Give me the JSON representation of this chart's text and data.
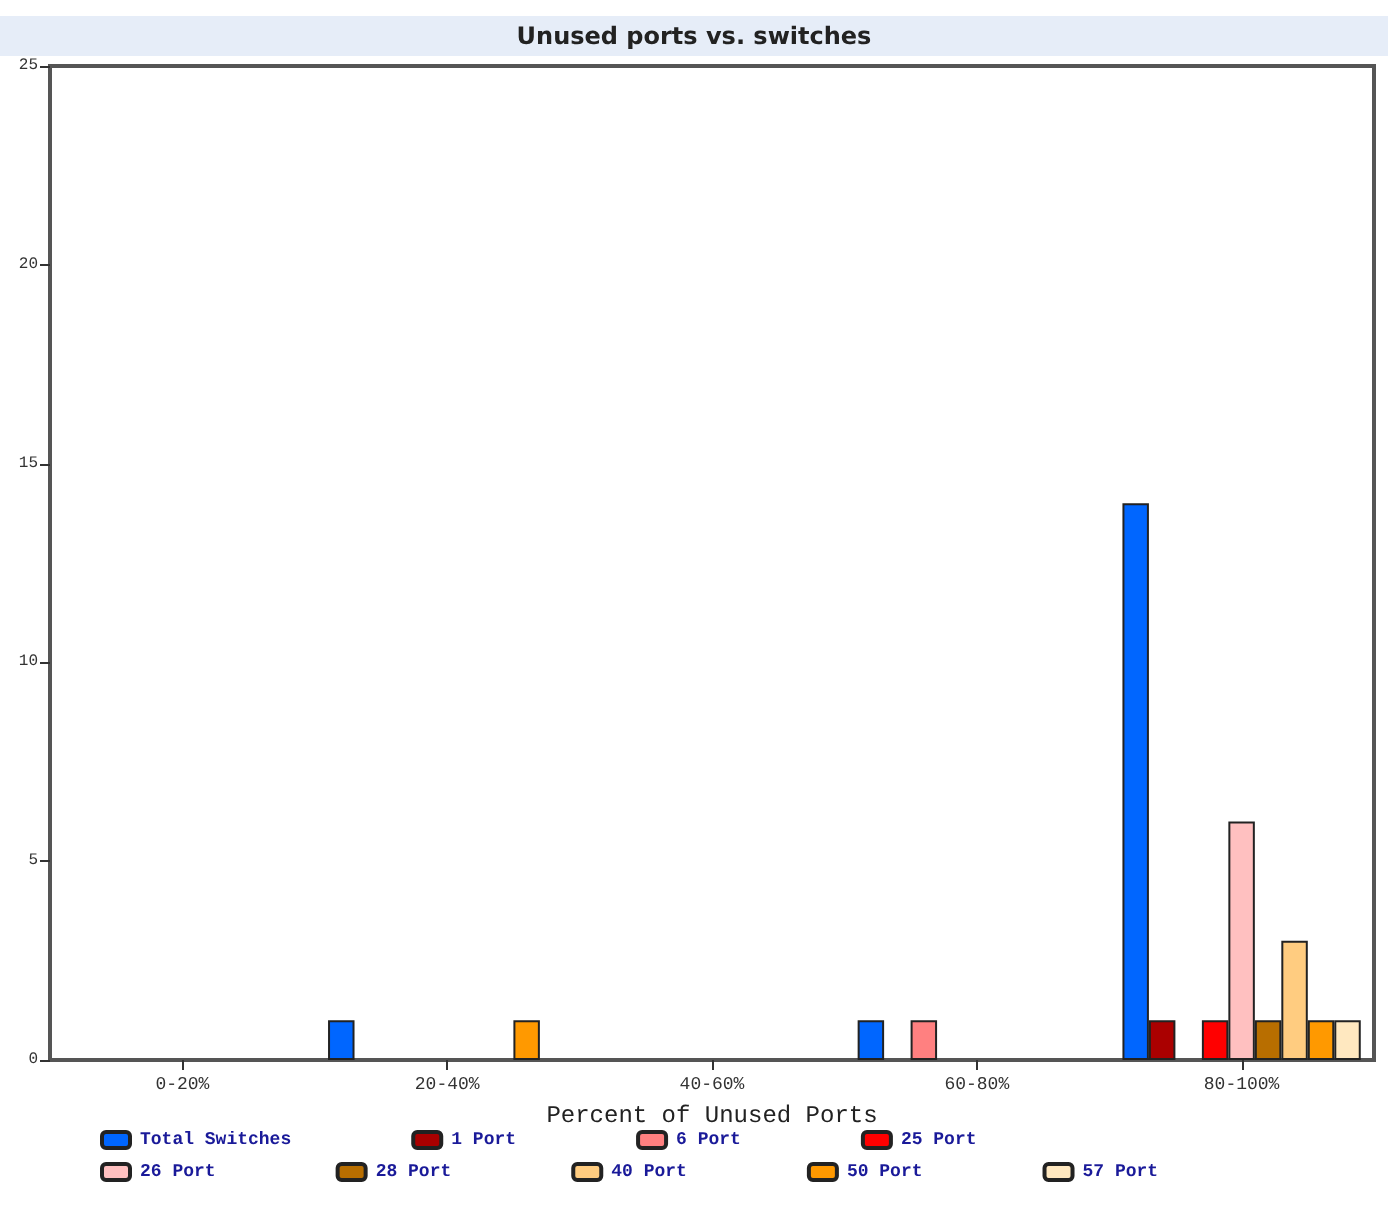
{
  "chart_data": {
    "type": "bar",
    "title": "Unused ports vs. switches",
    "xlabel": "Percent of Unused Ports",
    "categories": [
      "0-20%",
      "20-40%",
      "40-60%",
      "60-80%",
      "80-100%"
    ],
    "series": [
      {
        "name": "Total Switches",
        "color": "#0066ff",
        "values": [
          0,
          1,
          0,
          1,
          14
        ]
      },
      {
        "name": "1 Port",
        "color": "#aa0000",
        "values": [
          0,
          0,
          0,
          0,
          1
        ]
      },
      {
        "name": "6 Port",
        "color": "#ff8080",
        "values": [
          0,
          0,
          0,
          1,
          0
        ]
      },
      {
        "name": "25 Port",
        "color": "#ff0000",
        "values": [
          0,
          0,
          0,
          0,
          1
        ]
      },
      {
        "name": "26 Port",
        "color": "#ffc0c0",
        "values": [
          0,
          0,
          0,
          0,
          6
        ]
      },
      {
        "name": "28 Port",
        "color": "#b86e00",
        "values": [
          0,
          0,
          0,
          0,
          1
        ]
      },
      {
        "name": "40 Port",
        "color": "#ffcc80",
        "values": [
          0,
          0,
          0,
          0,
          3
        ]
      },
      {
        "name": "50 Port",
        "color": "#ff9900",
        "values": [
          0,
          1,
          0,
          0,
          1
        ]
      },
      {
        "name": "57 Port",
        "color": "#ffe8c0",
        "values": [
          0,
          0,
          0,
          0,
          1
        ]
      }
    ],
    "ylim": [
      0,
      25
    ],
    "yticks": [
      0,
      5,
      10,
      15,
      20,
      25
    ],
    "grid": false,
    "legend": "bottom"
  }
}
